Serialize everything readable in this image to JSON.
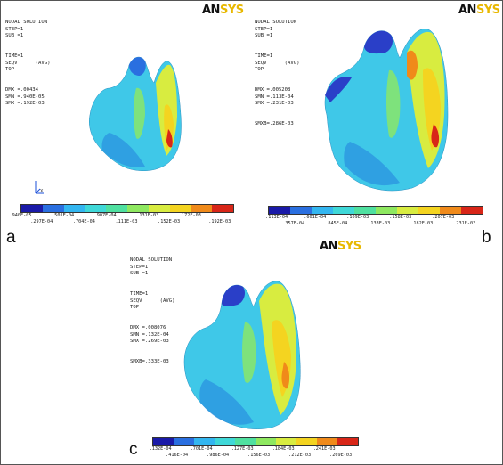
{
  "colors": {
    "scale": [
      "#1a1aa8",
      "#2a6fe0",
      "#33b6f0",
      "#3fd8d8",
      "#4fe0a0",
      "#8ee860",
      "#d8ec40",
      "#f4d420",
      "#f08a1a",
      "#d82618"
    ]
  },
  "panels": [
    {
      "id": "a",
      "label": "a",
      "logo": "AN",
      "logo_accent": "SYS",
      "info": [
        "NODAL SOLUTION",
        "STEP=1",
        "SUB =1",
        "TIME=1",
        "SEQV      (AVG)",
        "TOP",
        "DMX =.00434",
        "SMN =.940E-05",
        "SMX =.192E-03"
      ],
      "ticks_top": [
        ".940E-05",
        ".501E-04",
        ".907E-04",
        ".131E-03",
        ".172E-03"
      ],
      "ticks_bottom": [
        ".297E-04",
        ".704E-04",
        ".111E-03",
        ".152E-03",
        ".192E-03"
      ]
    },
    {
      "id": "b",
      "label": "b",
      "logo": "AN",
      "logo_accent": "SYS",
      "info": [
        "NODAL SOLUTION",
        "STEP=1",
        "SUB =1",
        "TIME=1",
        "SEQV      (AVG)",
        "TOP",
        "DMX =.005208",
        "SMN =.113E-04",
        "SMX =.231E-03",
        "SMXB=.286E-03"
      ],
      "ticks_top": [
        ".113E-04",
        ".601E-04",
        ".109E-03",
        ".158E-03",
        ".207E-03"
      ],
      "ticks_bottom": [
        ".357E-04",
        ".845E-04",
        ".133E-03",
        ".182E-03",
        ".231E-03"
      ]
    },
    {
      "id": "c",
      "label": "c",
      "logo": "AN",
      "logo_accent": "SYS",
      "info": [
        "NODAL SOLUTION",
        "STEP=1",
        "SUB =1",
        "TIME=1",
        "SEQV      (AVG)",
        "TOP",
        "DMX =.008076",
        "SMN =.132E-04",
        "SMX =.269E-03",
        "SMXB=.333E-03"
      ],
      "ticks_top": [
        ".132E-04",
        ".701E-04",
        ".127E-03",
        ".184E-03",
        ".241E-03"
      ],
      "ticks_bottom": [
        ".416E-04",
        ".986E-04",
        ".156E-03",
        ".212E-03",
        ".269E-03"
      ]
    }
  ]
}
